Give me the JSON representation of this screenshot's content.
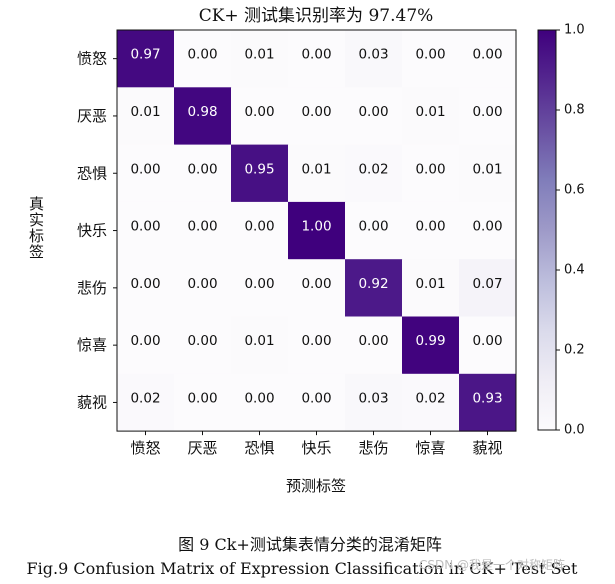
{
  "chart_data": {
    "type": "heatmap",
    "title": "CK+ 测试集识别率为  97.47%",
    "xlabel": "预测标签",
    "ylabel": "真实标签",
    "categories": [
      "愤怒",
      "厌恶",
      "恐惧",
      "快乐",
      "悲伤",
      "惊喜",
      "藐视"
    ],
    "matrix": [
      [
        0.97,
        0.0,
        0.01,
        0.0,
        0.03,
        0.0,
        0.0
      ],
      [
        0.01,
        0.98,
        0.0,
        0.0,
        0.0,
        0.01,
        0.0
      ],
      [
        0.0,
        0.0,
        0.95,
        0.01,
        0.02,
        0.0,
        0.01
      ],
      [
        0.0,
        0.0,
        0.0,
        1.0,
        0.0,
        0.0,
        0.0
      ],
      [
        0.0,
        0.0,
        0.0,
        0.0,
        0.92,
        0.01,
        0.07
      ],
      [
        0.0,
        0.0,
        0.01,
        0.0,
        0.0,
        0.99,
        0.0
      ],
      [
        0.02,
        0.0,
        0.0,
        0.0,
        0.03,
        0.02,
        0.93
      ]
    ],
    "colorbar": {
      "range": [
        0.0,
        1.0
      ],
      "ticks": [
        "0.0",
        "0.2",
        "0.4",
        "0.6",
        "0.8",
        "1.0"
      ],
      "colormap": "Purples"
    }
  },
  "caption": {
    "cn": "图 9 Ck+测试集表情分类的混淆矩阵",
    "en": "Fig.9 Confusion Matrix of Expression Classification in CK+ Test Set"
  },
  "watermark": "CSDN @我是一个对称矩阵",
  "colors": {
    "low": "#fcfbfd",
    "high": "#3f007d"
  }
}
